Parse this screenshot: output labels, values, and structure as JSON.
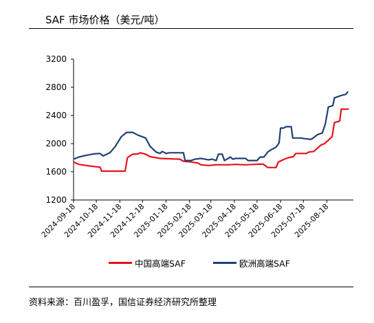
{
  "title": "SAF 市场价格（美元/吨）",
  "source": "资料来源：百川盈孚，国信证券经济研究所整理",
  "chart_data": {
    "type": "line",
    "title": "SAF 市场价格（美元/吨）",
    "xlabel": "",
    "ylabel": "",
    "ylim": [
      1200,
      3200
    ],
    "yticks": [
      1200,
      1600,
      2000,
      2400,
      2800,
      3200
    ],
    "xticks": [
      "2024-09-18",
      "2024-10-18",
      "2024-11-18",
      "2024-12-18",
      "2025-01-18",
      "2025-02-18",
      "2025-03-18",
      "2025-04-18",
      "2025-05-18",
      "2025-06-18",
      "2025-07-18",
      "2025-08-18"
    ],
    "xlim": [
      "2024-09-18",
      "2025-09-22"
    ],
    "grid": false,
    "legend": "bottom",
    "series": [
      {
        "name": "中国高端SAF",
        "color": "#e8101a",
        "points": [
          [
            "2024-09-18",
            1740
          ],
          [
            "2024-09-25",
            1705
          ],
          [
            "2024-10-05",
            1690
          ],
          [
            "2024-10-15",
            1675
          ],
          [
            "2024-10-23",
            1665
          ],
          [
            "2024-10-25",
            1610
          ],
          [
            "2024-11-25",
            1610
          ],
          [
            "2024-11-28",
            1800
          ],
          [
            "2024-12-02",
            1830
          ],
          [
            "2024-12-05",
            1850
          ],
          [
            "2024-12-12",
            1855
          ],
          [
            "2024-12-15",
            1870
          ],
          [
            "2024-12-22",
            1850
          ],
          [
            "2024-12-28",
            1815
          ],
          [
            "2025-01-05",
            1800
          ],
          [
            "2025-01-10",
            1790
          ],
          [
            "2025-02-05",
            1780
          ],
          [
            "2025-02-10",
            1750
          ],
          [
            "2025-02-20",
            1740
          ],
          [
            "2025-03-01",
            1725
          ],
          [
            "2025-03-05",
            1700
          ],
          [
            "2025-03-15",
            1690
          ],
          [
            "2025-03-25",
            1700
          ],
          [
            "2025-04-10",
            1700
          ],
          [
            "2025-04-20",
            1705
          ],
          [
            "2025-05-01",
            1700
          ],
          [
            "2025-05-15",
            1705
          ],
          [
            "2025-05-26",
            1710
          ],
          [
            "2025-06-01",
            1660
          ],
          [
            "2025-06-12",
            1660
          ],
          [
            "2025-06-15",
            1740
          ],
          [
            "2025-06-22",
            1775
          ],
          [
            "2025-06-28",
            1800
          ],
          [
            "2025-07-05",
            1815
          ],
          [
            "2025-07-08",
            1860
          ],
          [
            "2025-07-22",
            1860
          ],
          [
            "2025-07-25",
            1880
          ],
          [
            "2025-08-01",
            1890
          ],
          [
            "2025-08-05",
            1930
          ],
          [
            "2025-08-10",
            1980
          ],
          [
            "2025-08-15",
            2000
          ],
          [
            "2025-08-20",
            2050
          ],
          [
            "2025-08-25",
            2100
          ],
          [
            "2025-08-28",
            2300
          ],
          [
            "2025-09-04",
            2320
          ],
          [
            "2025-09-06",
            2490
          ],
          [
            "2025-09-16",
            2490
          ]
        ]
      },
      {
        "name": "欧洲高端SAF",
        "color": "#1f3f73",
        "points": [
          [
            "2024-09-18",
            1780
          ],
          [
            "2024-09-25",
            1810
          ],
          [
            "2024-10-05",
            1835
          ],
          [
            "2024-10-15",
            1855
          ],
          [
            "2024-10-23",
            1860
          ],
          [
            "2024-10-27",
            1825
          ],
          [
            "2024-11-05",
            1870
          ],
          [
            "2024-11-12",
            1960
          ],
          [
            "2024-11-20",
            2100
          ],
          [
            "2024-11-27",
            2160
          ],
          [
            "2024-12-05",
            2160
          ],
          [
            "2024-12-12",
            2120
          ],
          [
            "2024-12-22",
            2080
          ],
          [
            "2024-12-28",
            1960
          ],
          [
            "2025-01-05",
            1880
          ],
          [
            "2025-01-10",
            1860
          ],
          [
            "2025-01-13",
            1890
          ],
          [
            "2025-01-18",
            1860
          ],
          [
            "2025-01-22",
            1870
          ],
          [
            "2025-02-10",
            1870
          ],
          [
            "2025-02-12",
            1760
          ],
          [
            "2025-02-20",
            1760
          ],
          [
            "2025-02-25",
            1780
          ],
          [
            "2025-03-05",
            1790
          ],
          [
            "2025-03-10",
            1780
          ],
          [
            "2025-03-15",
            1770
          ],
          [
            "2025-03-20",
            1780
          ],
          [
            "2025-03-25",
            1760
          ],
          [
            "2025-03-28",
            1850
          ],
          [
            "2025-04-02",
            1850
          ],
          [
            "2025-04-05",
            1760
          ],
          [
            "2025-04-10",
            1790
          ],
          [
            "2025-04-13",
            1810
          ],
          [
            "2025-04-16",
            1780
          ],
          [
            "2025-04-20",
            1790
          ],
          [
            "2025-05-03",
            1790
          ],
          [
            "2025-05-06",
            1760
          ],
          [
            "2025-05-18",
            1760
          ],
          [
            "2025-05-22",
            1810
          ],
          [
            "2025-05-27",
            1810
          ],
          [
            "2025-06-01",
            1880
          ],
          [
            "2025-06-05",
            1910
          ],
          [
            "2025-06-12",
            1950
          ],
          [
            "2025-06-16",
            2010
          ],
          [
            "2025-06-18",
            2220
          ],
          [
            "2025-06-22",
            2220
          ],
          [
            "2025-06-25",
            2240
          ],
          [
            "2025-07-02",
            2240
          ],
          [
            "2025-07-04",
            2080
          ],
          [
            "2025-07-15",
            2080
          ],
          [
            "2025-07-20",
            2070
          ],
          [
            "2025-07-28",
            2060
          ],
          [
            "2025-07-31",
            2080
          ],
          [
            "2025-08-06",
            2130
          ],
          [
            "2025-08-12",
            2150
          ],
          [
            "2025-08-16",
            2280
          ],
          [
            "2025-08-20",
            2520
          ],
          [
            "2025-08-26",
            2540
          ],
          [
            "2025-08-28",
            2650
          ],
          [
            "2025-09-05",
            2680
          ],
          [
            "2025-09-08",
            2690
          ],
          [
            "2025-09-12",
            2700
          ],
          [
            "2025-09-15",
            2740
          ]
        ]
      }
    ]
  }
}
